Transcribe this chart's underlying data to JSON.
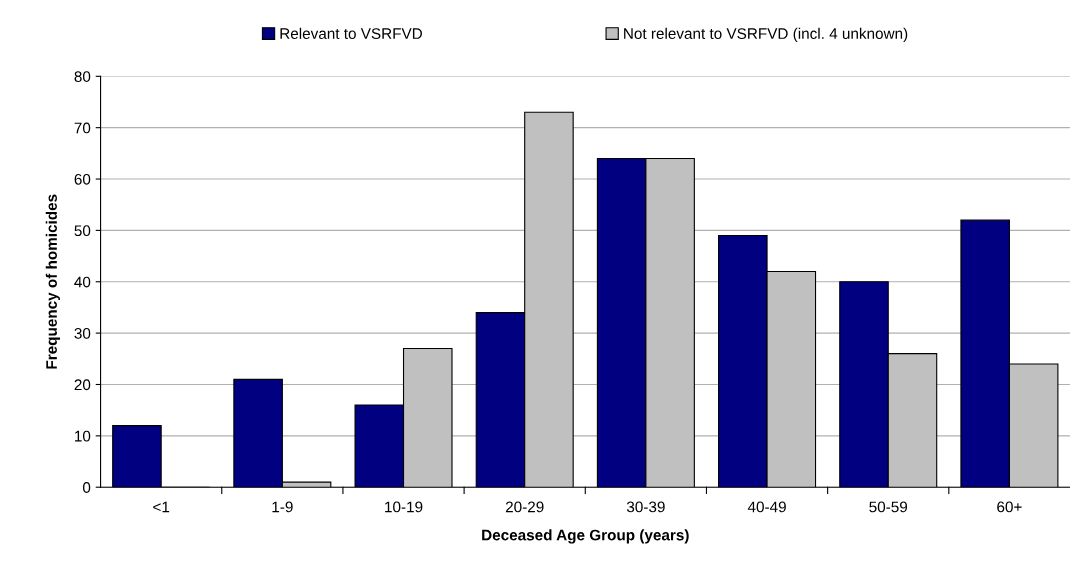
{
  "chart_data": {
    "type": "bar",
    "xlabel": "Deceased Age Group (years)",
    "ylabel": "Frequency of homicides",
    "categories": [
      "<1",
      "1-9",
      "10-19",
      "20-29",
      "30-39",
      "40-49",
      "50-59",
      "60+"
    ],
    "series": [
      {
        "name": "Relevant to VSRFVD",
        "color": "#000080",
        "values": [
          12,
          21,
          16,
          34,
          64,
          49,
          40,
          52
        ]
      },
      {
        "name": "Not relevant to VSRFVD (incl. 4 unknown)",
        "color": "#c0c0c0",
        "values": [
          0,
          1,
          27,
          73,
          64,
          42,
          26,
          24
        ]
      }
    ],
    "ylim": [
      0,
      80
    ],
    "yticks": [
      0,
      10,
      20,
      30,
      40,
      50,
      60,
      70,
      80
    ],
    "grid": "y",
    "legend": "top"
  }
}
